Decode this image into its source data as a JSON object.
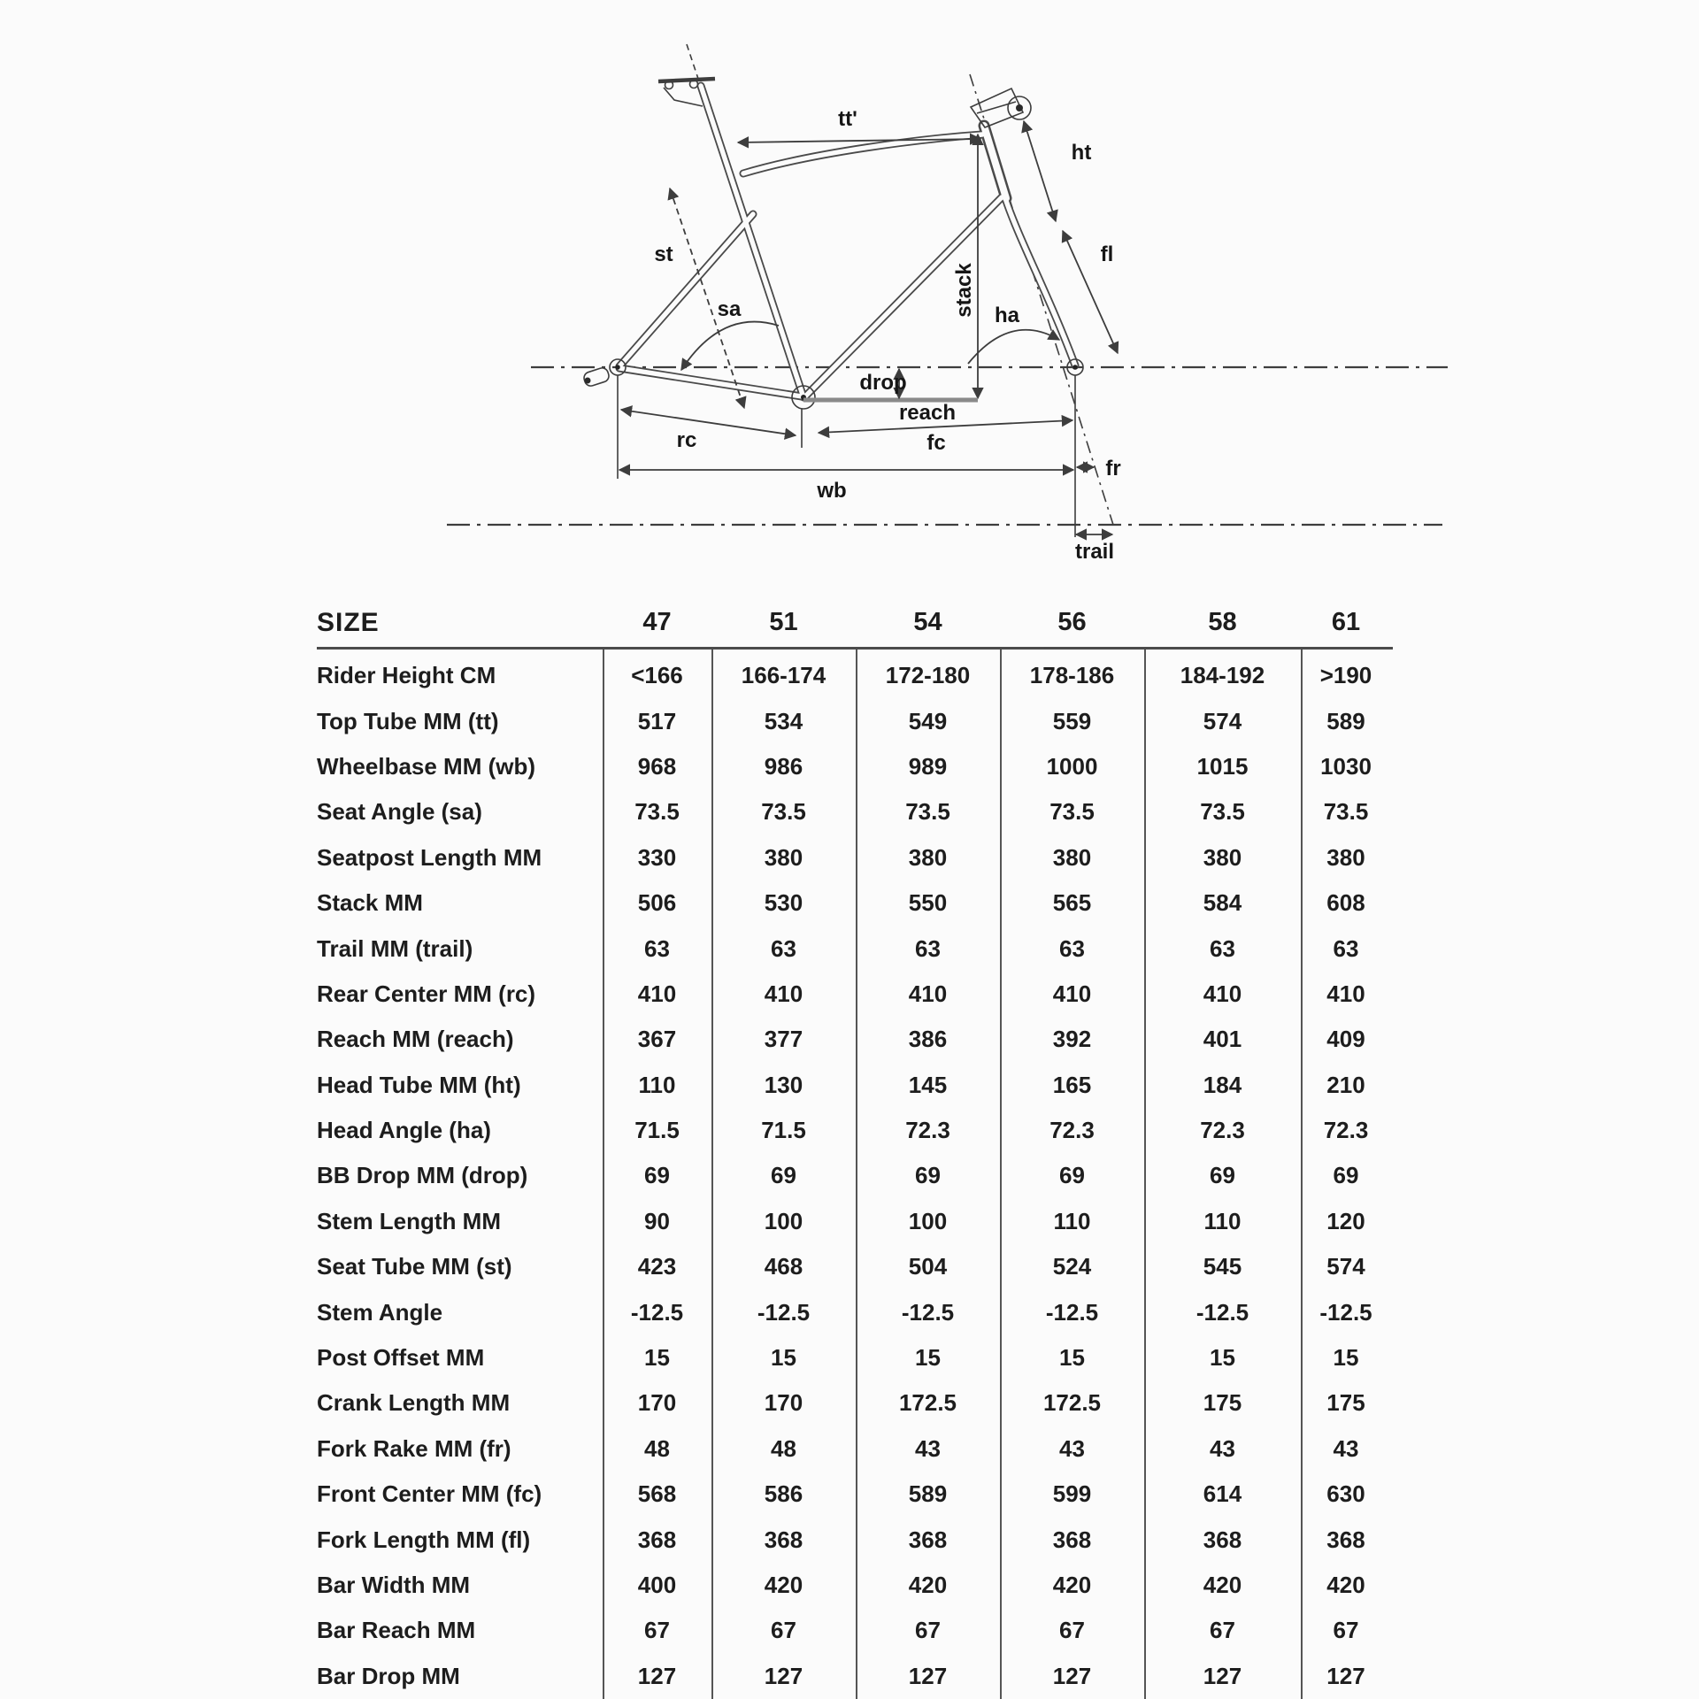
{
  "page": {
    "background": "#fbfbfb",
    "text_color": "#1d1d1d",
    "line_color": "#4a4a4a"
  },
  "diagram": {
    "description": "road-bike frame geometry line drawing with dimension callouts",
    "labels": {
      "tt": "tt'",
      "ht": "ht",
      "st": "st",
      "fl": "fl",
      "stack": "stack",
      "sa": "sa",
      "ha": "ha",
      "drop": "drop",
      "reach": "reach",
      "rc": "rc",
      "fc": "fc",
      "wb": "wb",
      "fr": "fr",
      "trail": "trail"
    }
  },
  "table": {
    "size_label": "SIZE",
    "sizes": [
      "47",
      "51",
      "54",
      "56",
      "58",
      "61"
    ],
    "rows": [
      {
        "label": "Rider Height CM",
        "values": [
          "<166",
          "166-174",
          "172-180",
          "178-186",
          "184-192",
          ">190"
        ]
      },
      {
        "label": "Top Tube MM (tt)",
        "values": [
          "517",
          "534",
          "549",
          "559",
          "574",
          "589"
        ]
      },
      {
        "label": "Wheelbase MM (wb)",
        "values": [
          "968",
          "986",
          "989",
          "1000",
          "1015",
          "1030"
        ]
      },
      {
        "label": "Seat Angle (sa)",
        "values": [
          "73.5",
          "73.5",
          "73.5",
          "73.5",
          "73.5",
          "73.5"
        ]
      },
      {
        "label": "Seatpost Length MM",
        "values": [
          "330",
          "380",
          "380",
          "380",
          "380",
          "380"
        ]
      },
      {
        "label": "Stack MM",
        "values": [
          "506",
          "530",
          "550",
          "565",
          "584",
          "608"
        ]
      },
      {
        "label": "Trail MM (trail)",
        "values": [
          "63",
          "63",
          "63",
          "63",
          "63",
          "63"
        ]
      },
      {
        "label": "Rear Center MM (rc)",
        "values": [
          "410",
          "410",
          "410",
          "410",
          "410",
          "410"
        ]
      },
      {
        "label": "Reach MM (reach)",
        "values": [
          "367",
          "377",
          "386",
          "392",
          "401",
          "409"
        ]
      },
      {
        "label": "Head Tube MM (ht)",
        "values": [
          "110",
          "130",
          "145",
          "165",
          "184",
          "210"
        ]
      },
      {
        "label": "Head Angle (ha)",
        "values": [
          "71.5",
          "71.5",
          "72.3",
          "72.3",
          "72.3",
          "72.3"
        ]
      },
      {
        "label": "BB Drop MM (drop)",
        "values": [
          "69",
          "69",
          "69",
          "69",
          "69",
          "69"
        ]
      },
      {
        "label": "Stem Length MM",
        "values": [
          "90",
          "100",
          "100",
          "110",
          "110",
          "120"
        ]
      },
      {
        "label": "Seat Tube MM (st)",
        "values": [
          "423",
          "468",
          "504",
          "524",
          "545",
          "574"
        ]
      },
      {
        "label": "Stem Angle",
        "values": [
          "-12.5",
          "-12.5",
          "-12.5",
          "-12.5",
          "-12.5",
          "-12.5"
        ]
      },
      {
        "label": "Post Offset MM",
        "values": [
          "15",
          "15",
          "15",
          "15",
          "15",
          "15"
        ]
      },
      {
        "label": "Crank Length MM",
        "values": [
          "170",
          "170",
          "172.5",
          "172.5",
          "175",
          "175"
        ]
      },
      {
        "label": "Fork Rake MM (fr)",
        "values": [
          "48",
          "48",
          "43",
          "43",
          "43",
          "43"
        ]
      },
      {
        "label": "Front Center MM (fc)",
        "values": [
          "568",
          "586",
          "589",
          "599",
          "614",
          "630"
        ]
      },
      {
        "label": "Fork Length MM (fl)",
        "values": [
          "368",
          "368",
          "368",
          "368",
          "368",
          "368"
        ]
      },
      {
        "label": "Bar Width MM",
        "values": [
          "400",
          "420",
          "420",
          "420",
          "420",
          "420"
        ]
      },
      {
        "label": "Bar Reach MM",
        "values": [
          "67",
          "67",
          "67",
          "67",
          "67",
          "67"
        ]
      },
      {
        "label": "Bar Drop MM",
        "values": [
          "127",
          "127",
          "127",
          "127",
          "127",
          "127"
        ]
      }
    ]
  }
}
